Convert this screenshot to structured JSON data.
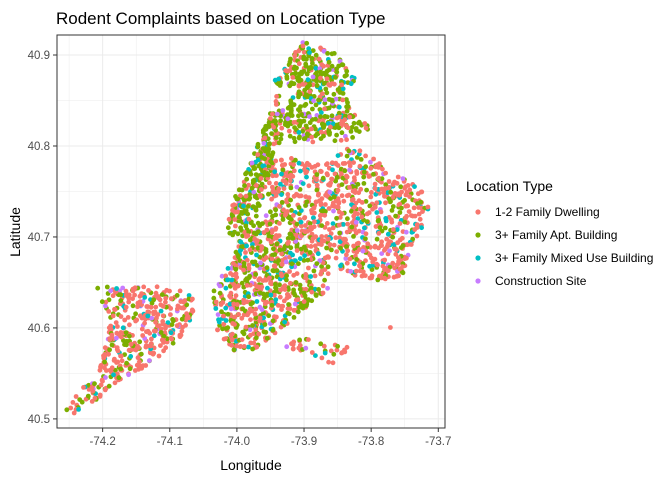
{
  "chart_data": {
    "type": "scatter",
    "title": "Rodent Complaints based on Location Type",
    "xlabel": "Longitude",
    "ylabel": "Latitude",
    "xlim": [
      -74.268,
      -73.69
    ],
    "ylim": [
      40.49,
      40.922
    ],
    "x_ticks": [
      -74.2,
      -74.1,
      -74.0,
      -73.9,
      -73.8,
      -73.7
    ],
    "x_tick_labels": [
      "-74.2",
      "-74.1",
      "-74.0",
      "-73.9",
      "-73.8",
      "-73.7"
    ],
    "y_ticks": [
      40.5,
      40.6,
      40.7,
      40.8,
      40.9
    ],
    "y_tick_labels": [
      "40.5",
      "40.6",
      "40.7",
      "40.8",
      "40.9"
    ],
    "grid": true,
    "legend": {
      "title": "Location Type",
      "placement": "right"
    },
    "series": [
      {
        "name": "1-2 Family Dwelling",
        "color": "#F8766D"
      },
      {
        "name": "3+ Family Apt. Building",
        "color": "#7CAE00"
      },
      {
        "name": "3+ Family Mixed Use Building",
        "color": "#00BFC4"
      },
      {
        "name": "Construction Site",
        "color": "#C77CFF"
      }
    ]
  }
}
